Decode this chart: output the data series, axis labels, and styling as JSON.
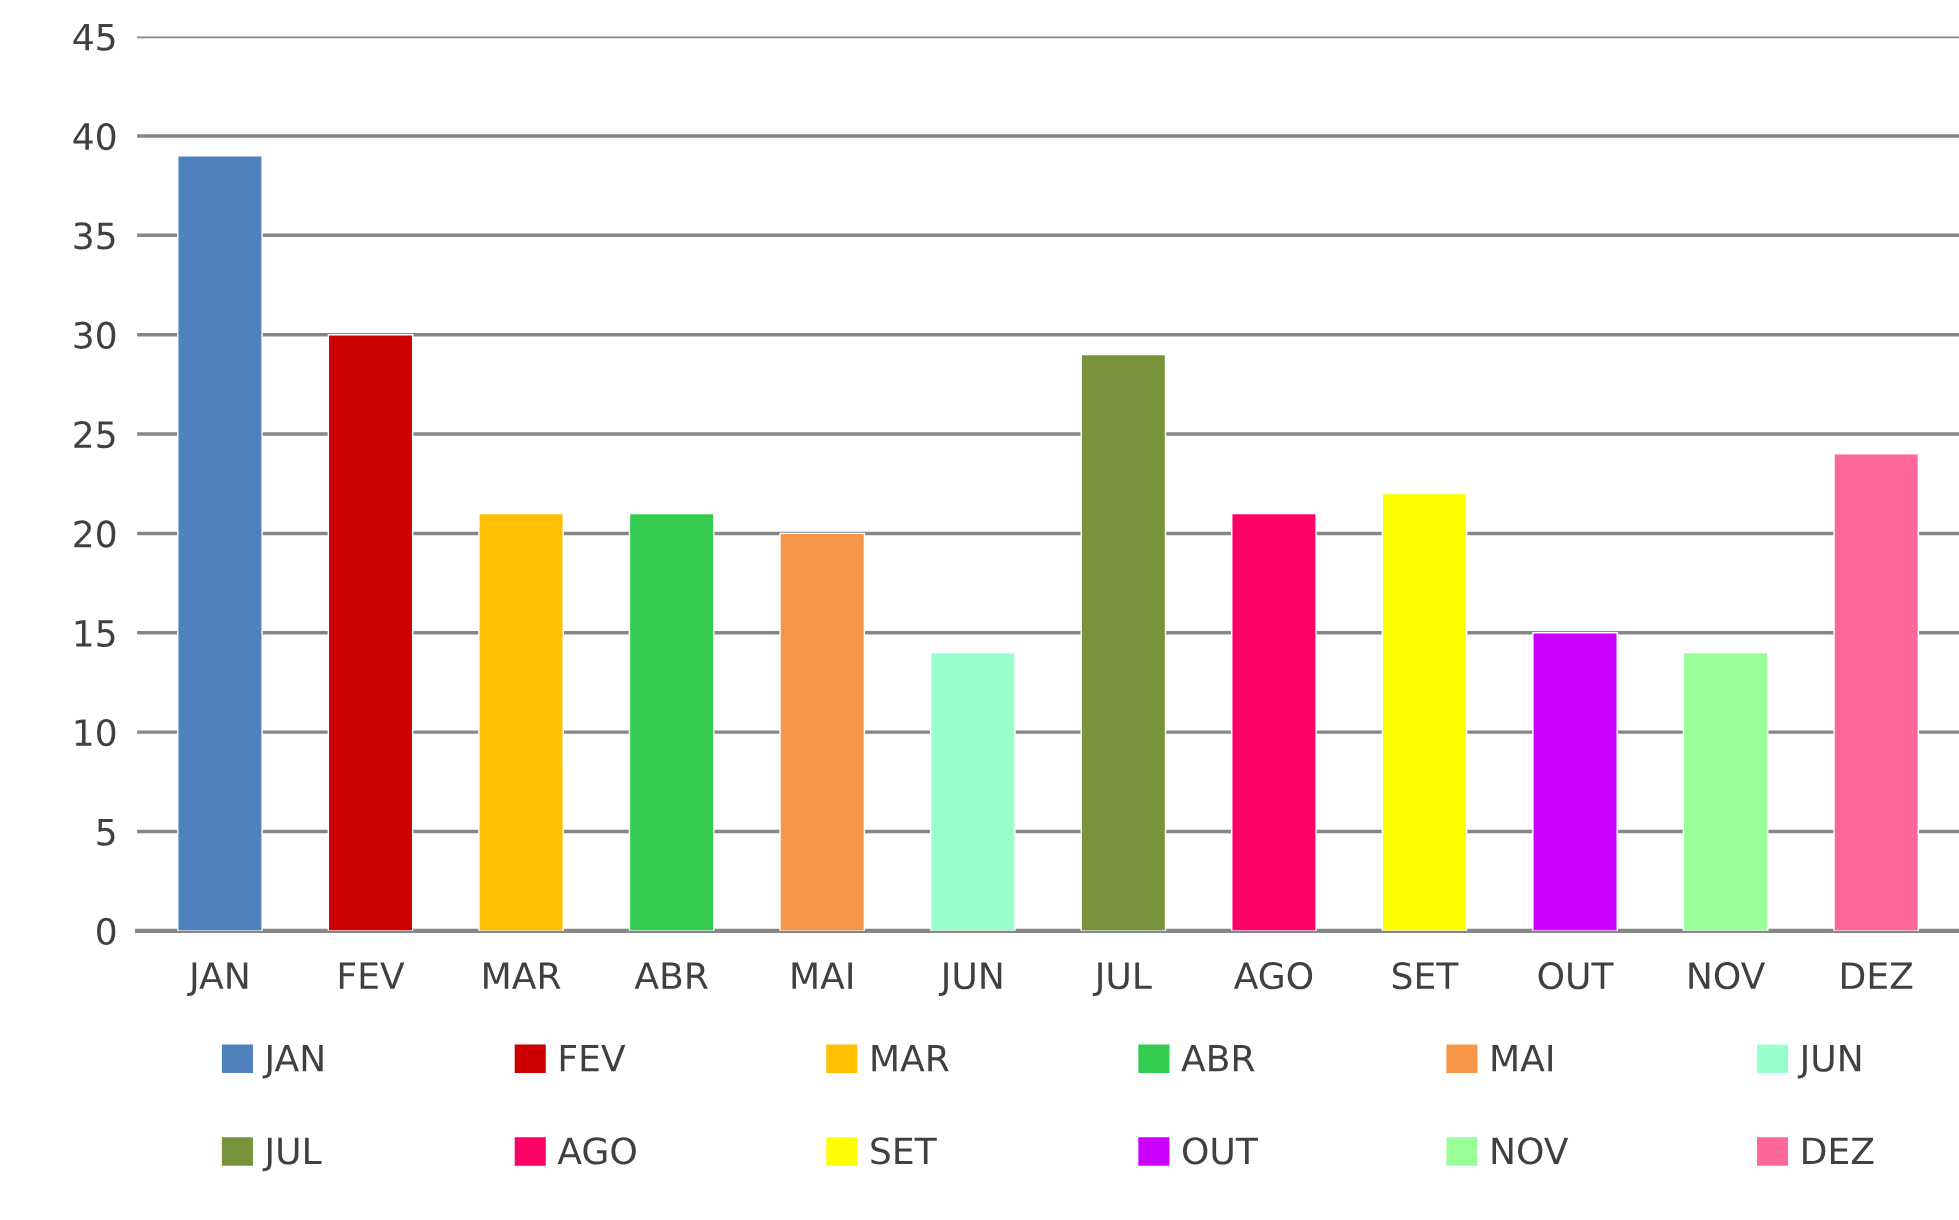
{
  "chart_data": {
    "type": "bar",
    "categories": [
      "JAN",
      "FEV",
      "MAR",
      "ABR",
      "MAI",
      "JUN",
      "JUL",
      "AGO",
      "SET",
      "OUT",
      "NOV",
      "DEZ"
    ],
    "series": [
      {
        "name": "JAN",
        "color": "#4f81bd",
        "values": [
          39,
          null,
          null,
          null,
          null,
          null,
          null,
          null,
          null,
          null,
          null,
          null
        ]
      },
      {
        "name": "FEV",
        "color": "#cc0000",
        "values": [
          null,
          30,
          null,
          null,
          null,
          null,
          null,
          null,
          null,
          null,
          null,
          null
        ]
      },
      {
        "name": "MAR",
        "color": "#ffc000",
        "values": [
          null,
          null,
          21,
          null,
          null,
          null,
          null,
          null,
          null,
          null,
          null,
          null
        ]
      },
      {
        "name": "ABR",
        "color": "#33cc4f",
        "values": [
          null,
          null,
          null,
          21,
          null,
          null,
          null,
          null,
          null,
          null,
          null,
          null
        ]
      },
      {
        "name": "MAI",
        "color": "#f79646",
        "values": [
          null,
          null,
          null,
          null,
          20,
          null,
          null,
          null,
          null,
          null,
          null,
          null
        ]
      },
      {
        "name": "JUN",
        "color": "#99ffcc",
        "values": [
          null,
          null,
          null,
          null,
          null,
          14,
          null,
          null,
          null,
          null,
          null,
          null
        ]
      },
      {
        "name": "JUL",
        "color": "#77933c",
        "values": [
          null,
          null,
          null,
          null,
          null,
          null,
          29,
          null,
          null,
          null,
          null,
          null
        ]
      },
      {
        "name": "AGO",
        "color": "#ff0066",
        "values": [
          null,
          null,
          null,
          null,
          null,
          null,
          null,
          21,
          null,
          null,
          null,
          null
        ]
      },
      {
        "name": "SET",
        "color": "#ffff00",
        "values": [
          null,
          null,
          null,
          null,
          null,
          null,
          null,
          null,
          22,
          null,
          null,
          null
        ]
      },
      {
        "name": "OUT",
        "color": "#cc00ff",
        "values": [
          null,
          null,
          null,
          null,
          null,
          null,
          null,
          null,
          null,
          15,
          null,
          null
        ]
      },
      {
        "name": "NOV",
        "color": "#99ff99",
        "values": [
          null,
          null,
          null,
          null,
          null,
          null,
          null,
          null,
          null,
          null,
          14,
          null
        ]
      },
      {
        "name": "DEZ",
        "color": "#ff6699",
        "values": [
          null,
          null,
          null,
          null,
          null,
          null,
          null,
          null,
          null,
          null,
          null,
          24
        ]
      }
    ],
    "ylim": [
      0,
      45
    ],
    "yticks": [
      0,
      5,
      10,
      15,
      20,
      25,
      30,
      35,
      40,
      45
    ],
    "grid": "y",
    "legend": "bottom"
  }
}
